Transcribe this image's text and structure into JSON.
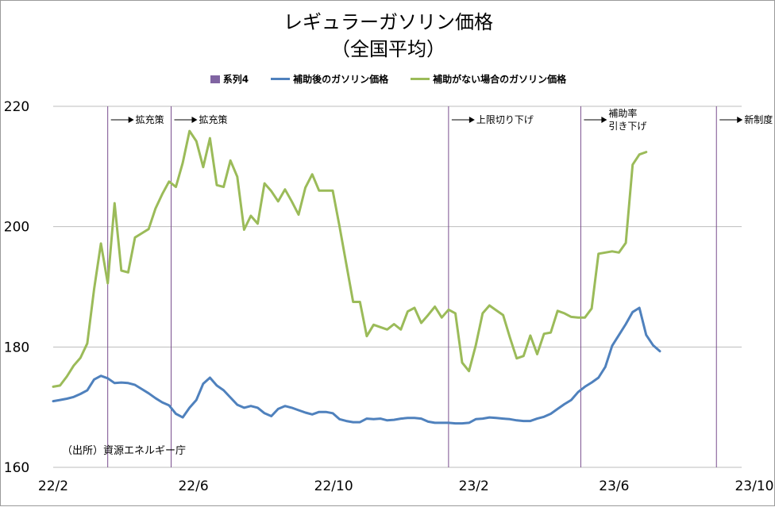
{
  "chart_data": {
    "type": "line",
    "title": "レギュラーガソリン価格",
    "subtitle": "（全国平均）",
    "xlabel": "",
    "ylabel": "",
    "ylim": [
      160,
      220
    ],
    "yticks": [
      160,
      180,
      200,
      220
    ],
    "xtick_labels": [
      "22/2",
      "22/6",
      "22/10",
      "23/2",
      "23/6",
      "23/10"
    ],
    "x_range_weeks": [
      0,
      101
    ],
    "xtick_weeks": [
      0,
      20.57,
      41.14,
      61.71,
      82.29,
      102.86
    ],
    "grid": "horizontal",
    "legend": [
      {
        "name": "系列4",
        "color": "#8064a2",
        "kind": "box"
      },
      {
        "name": "補助後のガソリン価格",
        "color": "#4f81bd",
        "kind": "line"
      },
      {
        "name": "補助がない場合のガソリン価格",
        "color": "#9bbb59",
        "kind": "line"
      }
    ],
    "series": [
      {
        "name": "補助後のガソリン価格",
        "color": "#4f81bd",
        "x": [
          0,
          1,
          2,
          3,
          4,
          5,
          6,
          7,
          8,
          9,
          10,
          11,
          12,
          13,
          14,
          15,
          16,
          17,
          18,
          19,
          20,
          21,
          22,
          23,
          24,
          25,
          26,
          27,
          28,
          29,
          30,
          31,
          32,
          33,
          34,
          35,
          36,
          37,
          38,
          39,
          40,
          41,
          42,
          43,
          44,
          45,
          46,
          47,
          48,
          49,
          50,
          51,
          52,
          53,
          54,
          55,
          56,
          57,
          58,
          59,
          60,
          61,
          62,
          63,
          64,
          65,
          66,
          67,
          68,
          69,
          70,
          71,
          72,
          73,
          74,
          75,
          76,
          77,
          78,
          79,
          80,
          81,
          82,
          83,
          84,
          85,
          86,
          87,
          88,
          89,
          90,
          91,
          92,
          93,
          94,
          95,
          96,
          97,
          98,
          99,
          100
        ],
        "values": [
          171.0,
          171.2,
          171.4,
          171.7,
          172.2,
          172.8,
          174.6,
          175.2,
          174.8,
          174.0,
          174.1,
          174.0,
          173.7,
          173.0,
          172.3,
          171.5,
          170.8,
          170.3,
          168.9,
          168.3,
          169.9,
          171.2,
          173.9,
          174.9,
          173.6,
          172.8,
          171.6,
          170.4,
          169.9,
          170.2,
          169.9,
          169.0,
          168.5,
          169.7,
          170.2,
          169.9,
          169.5,
          169.1,
          168.8,
          169.2,
          169.2,
          169.0,
          168.0,
          167.7,
          167.5,
          167.5,
          168.1,
          168.0,
          168.1,
          167.8,
          167.9,
          168.1,
          168.2,
          168.2,
          168.1,
          167.6,
          167.4,
          167.4,
          167.4,
          167.3,
          167.3,
          167.4,
          168.0,
          168.1,
          168.3,
          168.2,
          168.1,
          168.0,
          167.8,
          167.7,
          167.7,
          168.1,
          168.4,
          168.9,
          169.7,
          170.5,
          171.2,
          172.5,
          173.4,
          174.1,
          174.9,
          176.7,
          180.2,
          182.0,
          183.8,
          185.8,
          186.5,
          182.0,
          180.3,
          179.3,
          null,
          null,
          null,
          null,
          null,
          null,
          null,
          null,
          null,
          null,
          null
        ],
        "last_index": 89
      },
      {
        "name": "補助がない場合のガソリン価格",
        "color": "#9bbb59",
        "x": [
          0,
          1,
          2,
          3,
          4,
          5,
          6,
          7,
          8,
          9,
          10,
          11,
          12,
          13,
          14,
          15,
          16,
          17,
          18,
          19,
          20,
          21,
          22,
          23,
          24,
          25,
          26,
          27,
          28,
          29,
          30,
          31,
          32,
          33,
          34,
          35,
          36,
          37,
          38,
          39,
          40,
          41,
          42,
          43,
          44,
          45,
          46,
          47,
          48,
          49,
          50,
          51,
          52,
          53,
          54,
          55,
          56,
          57,
          58,
          59,
          60,
          61,
          62,
          63,
          64,
          65,
          66,
          67,
          68,
          69,
          70,
          71,
          72,
          73,
          74,
          75,
          76,
          77,
          78,
          79,
          80,
          81,
          82,
          83,
          84,
          85,
          86,
          87,
          88,
          89
        ],
        "values": [
          173.4,
          173.6,
          175.1,
          176.9,
          178.2,
          180.6,
          189.6,
          197.2,
          190.6,
          203.9,
          192.7,
          192.4,
          198.2,
          198.9,
          199.6,
          203.0,
          205.4,
          207.5,
          206.6,
          210.6,
          215.9,
          214.2,
          209.9,
          214.7,
          206.9,
          206.6,
          211.0,
          208.3,
          199.5,
          201.8,
          200.5,
          207.2,
          205.9,
          204.2,
          206.2,
          204.2,
          202.0,
          206.5,
          208.7,
          206.0,
          206.0,
          206.0,
          200.1,
          193.8,
          187.5,
          187.5,
          181.8,
          183.7,
          183.3,
          182.9,
          183.8,
          182.9,
          185.9,
          186.5,
          184.0,
          185.3,
          186.7,
          184.9,
          186.2,
          185.6,
          177.4,
          176.0,
          180.3,
          185.6,
          186.9,
          186.1,
          185.3,
          181.6,
          178.1,
          178.5,
          181.9,
          178.8,
          182.2,
          182.4,
          186.0,
          185.6,
          185.0,
          184.9,
          184.9,
          186.4,
          195.5,
          195.7,
          195.9,
          195.7,
          197.3,
          210.3,
          212.0,
          212.4,
          null,
          null
        ],
        "last_index": 87
      }
    ],
    "markers": [
      {
        "name": "系列4",
        "x": 8.0,
        "label": "拡充策"
      },
      {
        "name": "系列4",
        "x": 17.3,
        "label": "拡充策"
      },
      {
        "name": "系列4",
        "x": 58.0,
        "label": "上限切り下げ"
      },
      {
        "name": "系列4",
        "x": 77.4,
        "label": "補助率",
        "label2": "引き下げ"
      },
      {
        "name": "系列4",
        "x": 97.3,
        "label": "新制度"
      }
    ],
    "marker_color": "#7a4e8e",
    "annotations": [
      "（出所）資源エネルギー庁"
    ]
  }
}
